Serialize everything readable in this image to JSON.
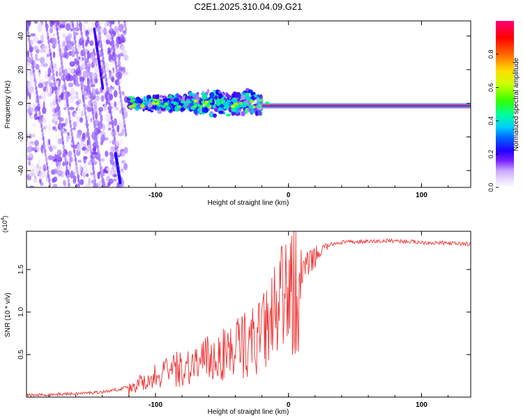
{
  "figure": {
    "title": "C2E1.2025.310.04.09.G21"
  },
  "chart_data": [
    {
      "type": "heatmap",
      "name": "spectrogram",
      "xlabel": "Height of straight line (km)",
      "ylabel": "Frequency (Hz)",
      "xlim": [
        -197,
        137
      ],
      "ylim": [
        -50,
        49
      ],
      "x_ticks": [
        -100,
        0,
        100
      ],
      "x_tick_labels": [
        "-100",
        "0",
        "100"
      ],
      "y_ticks": [
        -40,
        -20,
        0,
        20,
        40
      ],
      "y_tick_labels": [
        "-40",
        "-20",
        "0",
        "20",
        "40"
      ],
      "colorbar": {
        "label": "Normalized spectral amplitude",
        "range": [
          0,
          1
        ],
        "ticks": [
          0.0,
          0.2,
          0.4,
          0.6,
          0.8
        ],
        "tick_labels": [
          "0.0",
          "0.2",
          "0.4",
          "0.6",
          "0.8"
        ],
        "colors": [
          "#ffffff",
          "#e8d8ff",
          "#9966ff",
          "#5500ee",
          "#0000ff",
          "#00c8ff",
          "#00ff80",
          "#80ff00",
          "#ffff00",
          "#ff8000",
          "#ff0000",
          "#ff0080"
        ]
      },
      "features": [
        {
          "name": "steady carrier line",
          "x_range": [
            -20,
            137
          ],
          "frequency": -1.5,
          "amplitude": 1.0
        },
        {
          "name": "scattered cloud",
          "x_range": [
            -120,
            -20
          ],
          "frequency_range": [
            -10,
            10
          ],
          "amplitude": 0.45
        },
        {
          "name": "diffuse noise",
          "x_range": [
            -197,
            -122
          ],
          "frequency_range": [
            -50,
            49
          ],
          "amplitude": 0.15
        }
      ]
    },
    {
      "type": "line",
      "name": "snr",
      "xlabel": "Height of straight line (km)",
      "ylabel": "SNR (10 * v/v)",
      "y_scale_label": "(x10",
      "y_scale_exponent": "4",
      "xlim": [
        -197,
        137
      ],
      "ylim": [
        0,
        1.95
      ],
      "x_ticks": [
        -100,
        0,
        100
      ],
      "x_tick_labels": [
        "-100",
        "0",
        "100"
      ],
      "y_ticks": [
        0.5,
        1.0,
        1.5
      ],
      "y_tick_labels": [
        "0.5",
        "1.0",
        "1.5"
      ],
      "color": "#ee3333",
      "series": [
        {
          "name": "SNR",
          "x": [
            -197,
            -180,
            -160,
            -140,
            -125,
            -115,
            -105,
            -95,
            -85,
            -75,
            -65,
            -55,
            -45,
            -35,
            -25,
            -18,
            -12,
            -6,
            0,
            5,
            10,
            15,
            20,
            25,
            30,
            35,
            40,
            60,
            80,
            100,
            120,
            137
          ],
          "y": [
            0.02,
            0.03,
            0.04,
            0.06,
            0.1,
            0.15,
            0.22,
            0.28,
            0.33,
            0.38,
            0.43,
            0.48,
            0.55,
            0.62,
            0.7,
            0.78,
            0.95,
            1.1,
            1.2,
            1.32,
            1.45,
            1.55,
            1.65,
            1.73,
            1.78,
            1.81,
            1.82,
            1.83,
            1.84,
            1.82,
            1.81,
            1.8
          ]
        }
      ]
    }
  ]
}
